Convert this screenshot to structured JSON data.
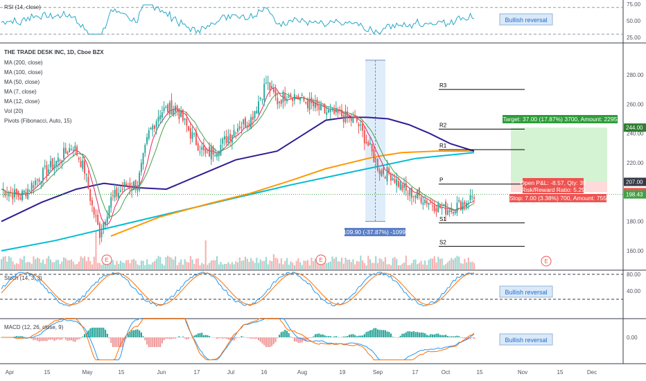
{
  "colors": {
    "up": "#26a69a",
    "down": "#ef5350",
    "ma200": "#00bcd4",
    "ma100": "#ff9800",
    "ma50": "#311b92",
    "ma7": "#e91e63",
    "ma12": "#43a047",
    "rsi": "#26a6c9",
    "stoch_k": "#2196f3",
    "stoch_d": "#ff6d00",
    "macd": "#2196f3",
    "signal": "#ff6d00",
    "target_zone": "#c8f0c8",
    "stop_zone": "#ffd6d6",
    "measure_zone": "#dcebfb",
    "pivot_line": "#000000",
    "reversal_box": "#dbe9f7",
    "reversal_text": "#1e6bd6"
  },
  "header": {
    "symbol_title": "THE TRADE DESK INC, 1D, Cboe BZX"
  },
  "legend": [
    "MA (200, close)",
    "MA (100, close)",
    "MA (50, close)",
    "MA (7, close)",
    "MA (12, close)",
    "Vol (20)",
    "Pivots (Fibonacci, Auto, 15)"
  ],
  "chart_data": [
    {
      "type": "candlestick",
      "title": "THE TRADE DESK INC, 1D, Cboe BZX",
      "x_tick_labels": [
        "Apr",
        "15",
        "May",
        "15",
        "Jun",
        "17",
        "Jul",
        "16",
        "Aug",
        "19",
        "Sep",
        "17",
        "Oct",
        "15",
        "Nov",
        "15",
        "Dec"
      ],
      "y_ticks": [
        160,
        180,
        200,
        220,
        240,
        260,
        280
      ],
      "y_range": [
        150,
        300
      ],
      "grid": false,
      "price_labels": [
        {
          "text": "244.00",
          "value": 244.0,
          "color": "#2e7d32"
        },
        {
          "text": "207.00",
          "value": 207.0,
          "color": "#363a45"
        },
        {
          "text": "200.00",
          "value": 200.0,
          "color": "#ef5350"
        },
        {
          "text": "198.43",
          "value": 198.43,
          "color": "#43a047"
        }
      ],
      "pivots": [
        {
          "name": "R3",
          "value": 270
        },
        {
          "name": "R2",
          "value": 243
        },
        {
          "name": "R1",
          "value": 229
        },
        {
          "name": "P",
          "value": 205.5
        },
        {
          "name": "S1",
          "value": 179
        },
        {
          "name": "S2",
          "value": 163
        }
      ],
      "position": {
        "entry": 207.0,
        "target": 244.0,
        "stop": 200.0,
        "target_label": "Target: 37.00 (17.87%) 3700, Amount: 2295",
        "open_pnl_label": "Open P&L: -8.57, Qty: 35",
        "risk_reward_label": "Risk/Reward Ratio: 5.29",
        "stop_label": "Stop: 7.00 (3.38%) 700, Amount: 755"
      },
      "measure": {
        "from": 290,
        "to": 180,
        "label": "-109.90 (-37.87%) -10990"
      },
      "earnings_markers": [
        "E",
        "E",
        "E"
      ],
      "series": [
        {
          "name": "MA (200, close)",
          "values": [
            160,
            185,
            195,
            205
          ]
        },
        {
          "name": "MA (100, close)",
          "values": [
            170,
            190,
            205,
            223,
            233,
            238,
            234
          ]
        },
        {
          "name": "MA (50, close)",
          "values": [
            175,
            200,
            200,
            226,
            249,
            248,
            225
          ]
        }
      ]
    },
    {
      "type": "line",
      "title": "RSI (14, close)",
      "y_ticks": [
        25,
        50,
        75
      ],
      "y_range": [
        20,
        80
      ],
      "levels": [
        30,
        70
      ]
    },
    {
      "type": "line",
      "title": "Stoch (14, 3, 3)",
      "y_ticks": [
        0,
        40,
        80
      ],
      "y_range": [
        -5,
        85
      ],
      "levels": [
        20,
        80
      ]
    },
    {
      "type": "bar",
      "title": "MACD (12, 26, close, 9)",
      "y_ticks": [
        0.0
      ],
      "y_range": [
        -1,
        1
      ]
    }
  ],
  "annotations": {
    "rsi_reversal": "Bullish reversal",
    "stoch_reversal": "Bullish reversal",
    "macd_reversal": "Bullish reversal"
  },
  "panes": {
    "rsi_title": "RSI (14, close)",
    "stoch_title": "Stoch (14, 3, 3)",
    "macd_title": "MACD (12, 26, close, 9)",
    "rsi_ticks": [
      "75.00",
      "50.00",
      "25.00"
    ],
    "price_ticks": [
      "280.00",
      "260.00",
      "240.00",
      "220.00",
      "200.00",
      "180.00",
      "160.00"
    ],
    "stoch_ticks": [
      "80.00",
      "40.00"
    ],
    "macd_ticks": [
      "0.00"
    ]
  }
}
